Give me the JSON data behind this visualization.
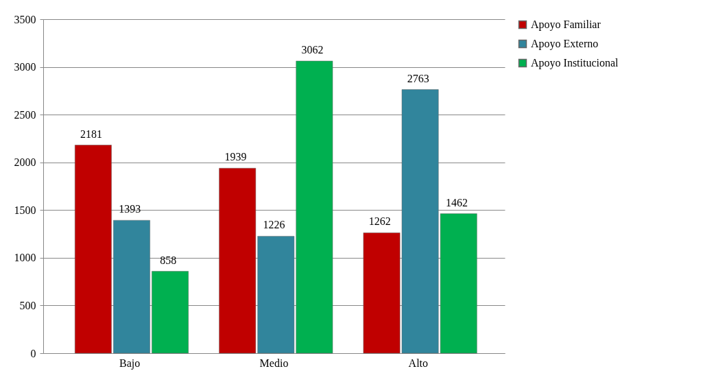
{
  "chart_data": {
    "type": "bar",
    "categories": [
      "Bajo",
      "Medio",
      "Alto"
    ],
    "series": [
      {
        "name": "Apoyo Familiar",
        "color": "#c00000",
        "values": [
          2181,
          1939,
          1262
        ]
      },
      {
        "name": "Apoyo Externo",
        "color": "#31859c",
        "values": [
          1393,
          1226,
          2763
        ]
      },
      {
        "name": "Apoyo Institucional",
        "color": "#00b050",
        "values": [
          858,
          3062,
          1462
        ]
      }
    ],
    "ylim": [
      0,
      3500
    ],
    "yticks": [
      0,
      500,
      1000,
      1500,
      2000,
      2500,
      3000,
      3500
    ],
    "grid": "y",
    "legend": "right",
    "data_labels": true
  }
}
